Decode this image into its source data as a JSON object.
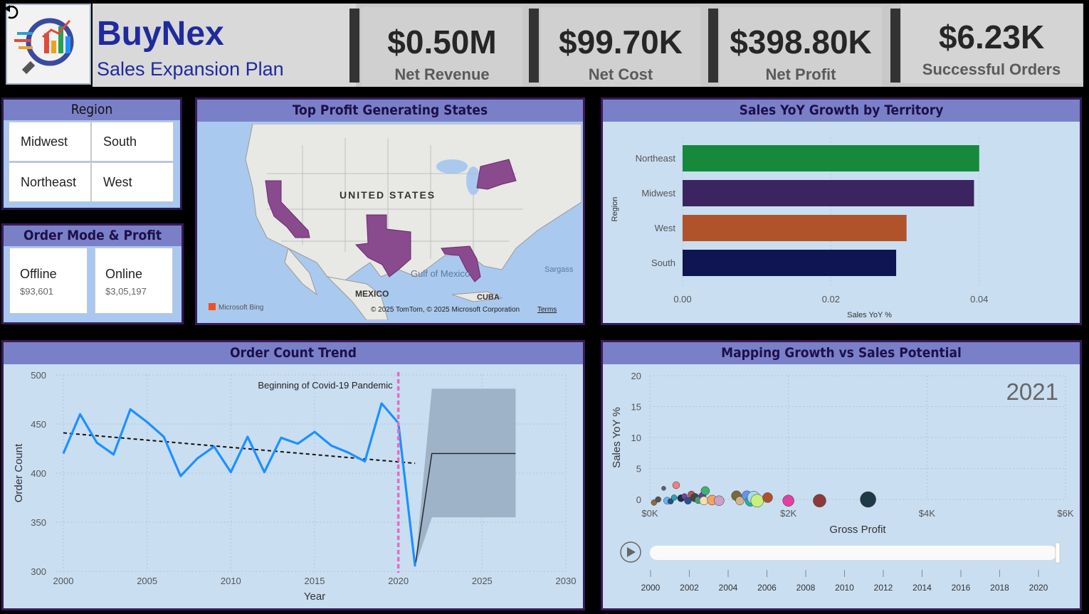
{
  "header": {
    "brand": "BuyNex",
    "subtitle": "Sales Expansion Plan"
  },
  "kpis": [
    {
      "value": "$0.50M",
      "label": "Net Revenue"
    },
    {
      "value": "$99.70K",
      "label": "Net Cost"
    },
    {
      "value": "$398.80K",
      "label": "Net Profit"
    },
    {
      "value": "$6.23K",
      "label": "Successful Orders"
    }
  ],
  "region_slicer": {
    "title": "Region",
    "items": [
      "Midwest",
      "South",
      "Northeast",
      "West"
    ]
  },
  "order_mode": {
    "title": "Order Mode & Profit",
    "cards": [
      {
        "name": "Offline",
        "value": "$93,601"
      },
      {
        "name": "Online",
        "value": "$3,05,197"
      }
    ]
  },
  "map": {
    "title": "Top Profit Generating States",
    "country_label": "UNITED STATES",
    "gulf_label": "Gulf of Mexico",
    "mexico_label": "MEXICO",
    "cuba_label": "CUBA",
    "sargasso_label": "Sargass",
    "bing_label": "Microsoft Bing",
    "copyright": "© 2025 TomTom, © 2025 Microsoft Corporation",
    "terms": "Terms",
    "highlight_color": "#8a4a8e"
  },
  "colors": {
    "accent_header": "#7a80c8",
    "northeast": "#168a3a",
    "midwest": "#3b2460",
    "west": "#b0532a",
    "south": "#0f1550",
    "line": "#1e90ff"
  },
  "chart_data": [
    {
      "type": "bar",
      "title": "Sales YoY Growth by Territory",
      "xlabel": "Sales YoY %",
      "ylabel": "Region",
      "categories": [
        "Northeast",
        "Midwest",
        "West",
        "South"
      ],
      "values": [
        0.04,
        0.0393,
        0.0302,
        0.0288
      ],
      "colors": [
        "#168a3a",
        "#3b2460",
        "#b0532a",
        "#0f1550"
      ],
      "xlim": [
        0,
        0.043
      ],
      "xticks": [
        "0.00",
        "0.02",
        "0.04"
      ]
    },
    {
      "type": "line",
      "title": "Order Count Trend",
      "xlabel": "Year",
      "ylabel": "Order Count",
      "x": [
        2000,
        2001,
        2002,
        2003,
        2004,
        2005,
        2006,
        2007,
        2008,
        2009,
        2010,
        2011,
        2012,
        2013,
        2014,
        2015,
        2016,
        2017,
        2018,
        2019,
        2020,
        2021
      ],
      "values": [
        420,
        460,
        431,
        419,
        465,
        452,
        437,
        397,
        415,
        427,
        401,
        437,
        401,
        436,
        430,
        442,
        428,
        421,
        412,
        471,
        451,
        305
      ],
      "trend": {
        "x0": 2000,
        "y0": 441,
        "x1": 2021,
        "y1": 410
      },
      "forecast": {
        "x": [
          2021,
          2022,
          2027
        ],
        "values": [
          305,
          420,
          420
        ],
        "upper": [
          305,
          486,
          486
        ],
        "lower": [
          305,
          355,
          355
        ]
      },
      "annotation": {
        "x": 2020,
        "text": "Beginning of Covid-19 Pandemic"
      },
      "xlim": [
        2000,
        2030
      ],
      "ylim": [
        300,
        500
      ],
      "xticks": [
        "2000",
        "2005",
        "2010",
        "2015",
        "2020",
        "2025",
        "2030"
      ],
      "yticks": [
        "300",
        "350",
        "400",
        "450",
        "500"
      ]
    },
    {
      "type": "scatter",
      "title": "Mapping Growth vs Sales Potential",
      "xlabel": "Gross Profit",
      "ylabel": "Sales YoY %",
      "year_label": "2021",
      "xlim": [
        0,
        6000
      ],
      "ylim": [
        0,
        20
      ],
      "xticks": [
        "$0K",
        "$2K",
        "$4K",
        "$6K"
      ],
      "yticks": [
        "0",
        "5",
        "10",
        "15",
        "20"
      ],
      "points": [
        {
          "x": 60,
          "y": -0.5,
          "r": 4,
          "color": "#8a6d3b"
        },
        {
          "x": 120,
          "y": 0,
          "r": 4,
          "color": "#555"
        },
        {
          "x": 200,
          "y": 1.8,
          "r": 3,
          "color": "#5a6070"
        },
        {
          "x": 250,
          "y": -0.2,
          "r": 5,
          "color": "#66b2ff"
        },
        {
          "x": 300,
          "y": -0.3,
          "r": 4,
          "color": "#2a4f7a"
        },
        {
          "x": 350,
          "y": 0.3,
          "r": 4,
          "color": "#2aa0b8"
        },
        {
          "x": 380,
          "y": 2.3,
          "r": 5,
          "color": "#f08080"
        },
        {
          "x": 450,
          "y": 0.2,
          "r": 5,
          "color": "#1a2e4a"
        },
        {
          "x": 500,
          "y": 0.5,
          "r": 4,
          "color": "#7a3fa0"
        },
        {
          "x": 550,
          "y": -0.2,
          "r": 5,
          "color": "#2a5090"
        },
        {
          "x": 600,
          "y": 0.8,
          "r": 5,
          "color": "#b05a5a"
        },
        {
          "x": 650,
          "y": 0.3,
          "r": 6,
          "color": "#444"
        },
        {
          "x": 700,
          "y": -0.1,
          "r": 5,
          "color": "#3fa070"
        },
        {
          "x": 760,
          "y": 0.6,
          "r": 5,
          "color": "#6a3fa0"
        },
        {
          "x": 800,
          "y": 1.4,
          "r": 6,
          "color": "#3cb371"
        },
        {
          "x": 780,
          "y": -0.2,
          "r": 6,
          "color": "#f5deb3"
        },
        {
          "x": 900,
          "y": -0.1,
          "r": 7,
          "color": "#f4a460"
        },
        {
          "x": 1000,
          "y": -0.2,
          "r": 7,
          "color": "#c8a2c8"
        },
        {
          "x": 1250,
          "y": 0.6,
          "r": 7,
          "color": "#7a6a3a"
        },
        {
          "x": 1300,
          "y": -0.2,
          "r": 6,
          "color": "#d2b48c"
        },
        {
          "x": 1400,
          "y": 0.6,
          "r": 7,
          "color": "#6495ed"
        },
        {
          "x": 1450,
          "y": -0.3,
          "r": 7,
          "color": "#20b2aa"
        },
        {
          "x": 1500,
          "y": 0.3,
          "r": 9,
          "color": "#add8e6"
        },
        {
          "x": 1550,
          "y": -0.2,
          "r": 9,
          "color": "#c8f07a"
        },
        {
          "x": 1700,
          "y": 0.3,
          "r": 7,
          "color": "#b05030"
        },
        {
          "x": 2000,
          "y": -0.2,
          "r": 8,
          "color": "#e040a0"
        },
        {
          "x": 2450,
          "y": -0.2,
          "r": 9,
          "color": "#8b3a3a"
        },
        {
          "x": 3150,
          "y": 0,
          "r": 11,
          "color": "#1e3a46"
        }
      ],
      "slider_ticks": [
        "2000",
        "2002",
        "2004",
        "2006",
        "2008",
        "2010",
        "2012",
        "2014",
        "2016",
        "2018",
        "2020"
      ]
    }
  ]
}
